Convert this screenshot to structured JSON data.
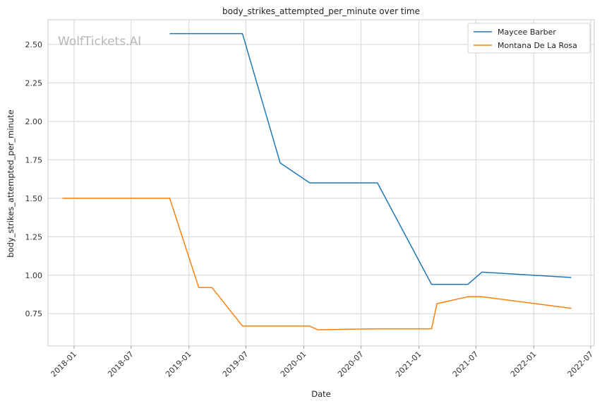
{
  "watermark": "WolfTickets.AI",
  "chart_data": {
    "type": "line",
    "title": "body_strikes_attempted_per_minute over time",
    "xlabel": "Date",
    "ylabel": "body_strikes_attempted_per_minute",
    "x_ticks": [
      "2018-01",
      "2018-07",
      "2019-01",
      "2019-07",
      "2020-01",
      "2020-07",
      "2021-01",
      "2021-07",
      "2022-01",
      "2022-07"
    ],
    "y_ticks": [
      "0.75",
      "1.00",
      "1.25",
      "1.50",
      "1.75",
      "2.00",
      "2.25",
      "2.50"
    ],
    "xlim": [
      "2017-10-10",
      "2022-07-12"
    ],
    "ylim": [
      0.54,
      2.66
    ],
    "grid": true,
    "legend_position": "top-right",
    "series": [
      {
        "name": "Maycee Barber",
        "color": "#1f77b4",
        "points": [
          {
            "x": "2018-11-01",
            "y": 2.57
          },
          {
            "x": "2019-06-20",
            "y": 2.57
          },
          {
            "x": "2019-10-18",
            "y": 1.73
          },
          {
            "x": "2020-01-20",
            "y": 1.6
          },
          {
            "x": "2020-08-22",
            "y": 1.6
          },
          {
            "x": "2021-02-10",
            "y": 0.94
          },
          {
            "x": "2021-06-05",
            "y": 0.94
          },
          {
            "x": "2021-07-20",
            "y": 1.02
          },
          {
            "x": "2022-04-30",
            "y": 0.985
          }
        ]
      },
      {
        "name": "Montana De La Rosa",
        "color": "#ff7f0e",
        "points": [
          {
            "x": "2017-11-25",
            "y": 1.5
          },
          {
            "x": "2018-11-01",
            "y": 1.5
          },
          {
            "x": "2019-02-01",
            "y": 0.92
          },
          {
            "x": "2019-03-15",
            "y": 0.92
          },
          {
            "x": "2019-06-20",
            "y": 0.67
          },
          {
            "x": "2020-01-18",
            "y": 0.67
          },
          {
            "x": "2020-02-15",
            "y": 0.645
          },
          {
            "x": "2020-08-22",
            "y": 0.652
          },
          {
            "x": "2021-02-10",
            "y": 0.652
          },
          {
            "x": "2021-02-27",
            "y": 0.815
          },
          {
            "x": "2021-06-05",
            "y": 0.86
          },
          {
            "x": "2021-07-20",
            "y": 0.86
          },
          {
            "x": "2022-04-30",
            "y": 0.785
          }
        ]
      }
    ]
  }
}
